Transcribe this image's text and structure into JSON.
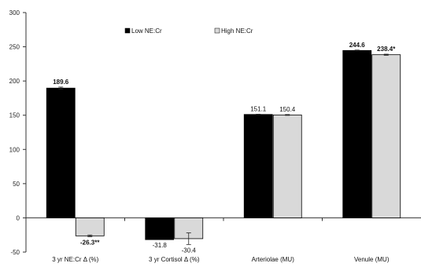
{
  "chart_data": {
    "type": "bar",
    "title": "",
    "xlabel": "",
    "ylabel": "",
    "ylim": [
      -50,
      300
    ],
    "yticks": [
      -50,
      0,
      50,
      100,
      150,
      200,
      250,
      300
    ],
    "grid": false,
    "legend_position": "top-center",
    "categories": [
      "3 yr NE:Cr Δ (%)",
      "3 yr Cortisol Δ (%)",
      "Arteriolae (MU)",
      "Venule (MU)"
    ],
    "series": [
      {
        "name": "Low NE:Cr",
        "color": "#000000",
        "values": [
          189.6,
          -31.8,
          151.1,
          244.6
        ],
        "labels": [
          "189.6",
          "-31.8",
          "151.1",
          "244.6"
        ],
        "label_bold": [
          true,
          false,
          false,
          true
        ],
        "errors": [
          1.5,
          0,
          0.4,
          0.6
        ]
      },
      {
        "name": "High NE:Cr",
        "color": "#d9d9d9",
        "values": [
          -26.3,
          -30.4,
          150.4,
          238.4
        ],
        "labels": [
          "-26.3**",
          "-30.4",
          "150.4",
          "238.4*"
        ],
        "label_bold": [
          true,
          false,
          false,
          true
        ],
        "errors": [
          1.2,
          8.5,
          0.6,
          0.8
        ]
      }
    ]
  }
}
